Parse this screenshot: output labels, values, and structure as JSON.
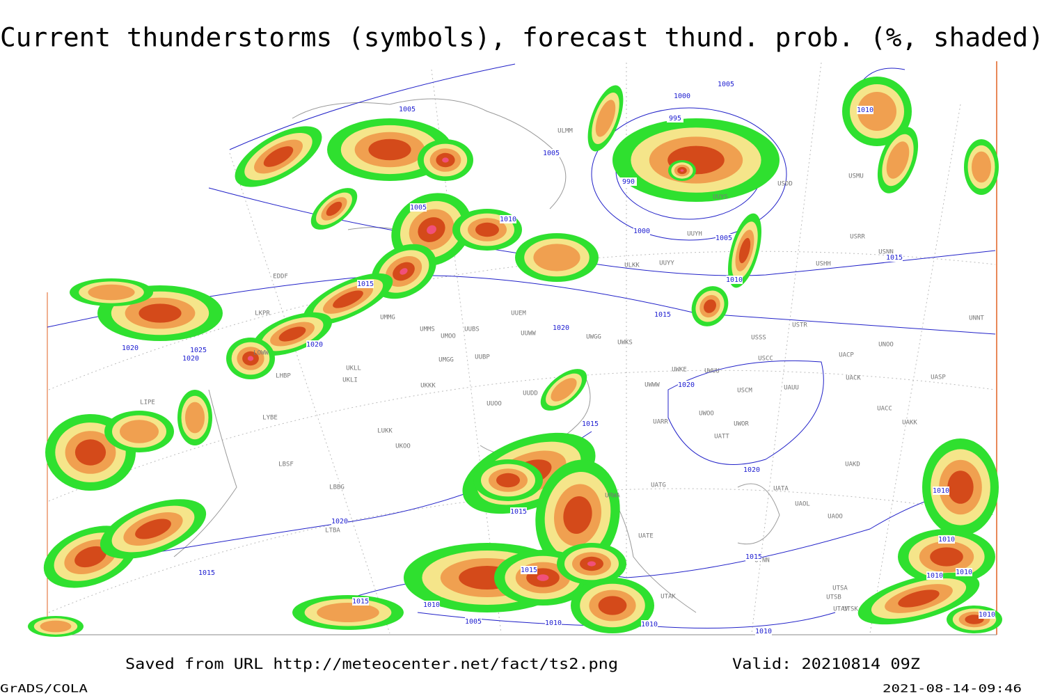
{
  "title": "Current thunderstorms (symbols), forecast thund. prob. (%, shaded)",
  "footer": {
    "saved": "Saved from URL http://meteocenter.net/fact/ts2.png",
    "valid": "Valid: 20210814 09Z",
    "software": "GrADS/COLA",
    "timestamp": "2021-08-14-09:46"
  },
  "isobar_labels": [
    "1005",
    "995",
    "1000",
    "1005",
    "1005",
    "990",
    "1005",
    "1010",
    "1000",
    "1005",
    "1010",
    "1015",
    "1015",
    "1015",
    "1020",
    "1020",
    "1020",
    "1025",
    "1020",
    "1020",
    "1015",
    "1020",
    "1015",
    "1020",
    "1015",
    "1015",
    "1015",
    "1010",
    "1015",
    "1005",
    "1010",
    "1010",
    "1010",
    "1010",
    "1010",
    "1010",
    "1010",
    "1010",
    "1010"
  ],
  "stations": [
    "EDDF",
    "LKPR",
    "LOWW",
    "LHBP",
    "LIPE",
    "LYBE",
    "LBSF",
    "LBBG",
    "LTBA",
    "UKLL",
    "UKLI",
    "UKKK",
    "UKOO",
    "LUKK",
    "UMMG",
    "UMMS",
    "UMOO",
    "UUBS",
    "UUWW",
    "UUEM",
    "UMGG",
    "UUBP",
    "UUOO",
    "UUDD",
    "UWGG",
    "UWKS",
    "UWKE",
    "UWUU",
    "UWWW",
    "USCM",
    "UAUU",
    "USSS",
    "USTR",
    "USCC",
    "UWOO",
    "UWOR",
    "UATT",
    "UARR",
    "UNOO",
    "UACP",
    "UACK",
    "UASP",
    "UACC",
    "UAKK",
    "UAKD",
    "UATA",
    "UAOL",
    "UAOO",
    "UATG",
    "URWA",
    "UATE",
    "UTAK",
    "UTAV",
    "UTSA",
    "UTSB",
    "UTSK",
    "UTNN",
    "UUYY",
    "UUYH",
    "ULKK",
    "USHH",
    "USRR",
    "USNN",
    "USDD",
    "USMU",
    "UUYS",
    "ULMM",
    "UNNT"
  ]
}
